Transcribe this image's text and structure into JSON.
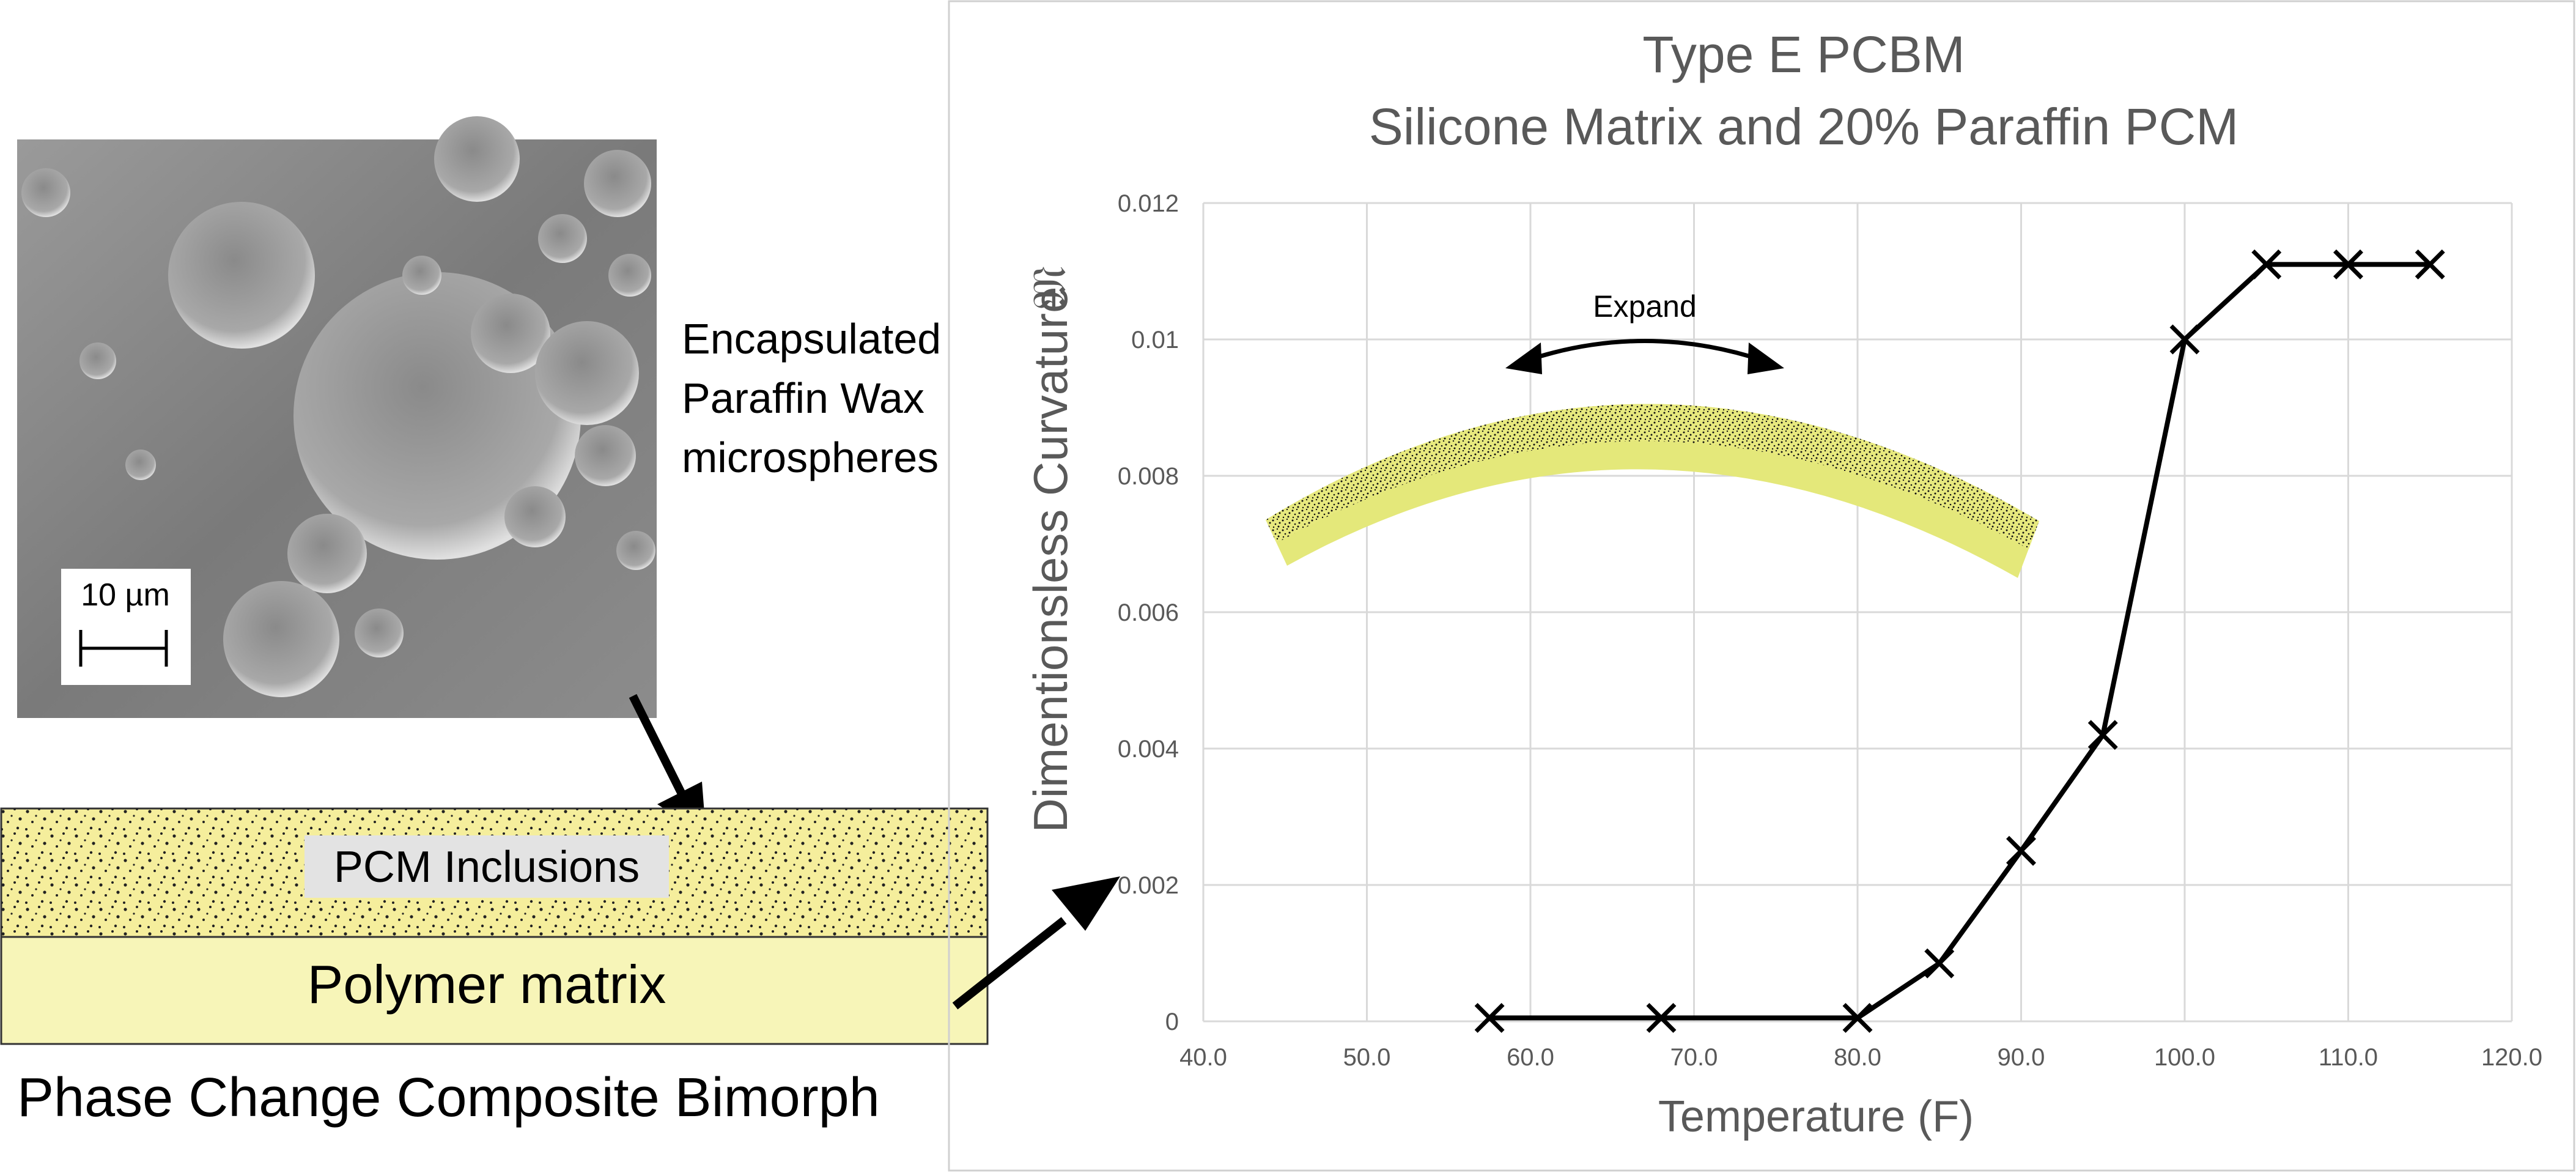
{
  "left_panel": {
    "scale_bar_label": "10 µm",
    "encapsulated_label_lines": [
      "Encapsulated",
      "Paraffin Wax",
      "microspheres"
    ],
    "pcm_label": "PCM Inclusions",
    "polymer_label": "Polymer matrix",
    "caption": "Phase Change Composite Bimorph",
    "colors": {
      "layer_fill": "#f7f2b0",
      "layer_pcm_fill": "#f5ee9c",
      "strip_fill": "#e4e87a"
    }
  },
  "chart_data": {
    "type": "line",
    "title_lines": [
      "Type E PCBM",
      "Silicone Matrix  and 20% Paraffin PCM"
    ],
    "xlabel": "Temperature (F)",
    "ylabel": "Dimentionsless Curvature",
    "ylabel_symbol": "𝔐",
    "xlim": [
      40.0,
      120.0
    ],
    "ylim": [
      0,
      0.012
    ],
    "x_ticks": [
      "40.0",
      "50.0",
      "60.0",
      "70.0",
      "80.0",
      "90.0",
      "100.0",
      "110.0",
      "120.0"
    ],
    "y_ticks": [
      "0",
      "0.002",
      "0.004",
      "0.006",
      "0.008",
      "0.01",
      "0.012"
    ],
    "grid": true,
    "marker": "x",
    "series": [
      {
        "x": [
          57.5,
          68.0,
          80.0,
          85.0,
          90.0,
          95.0,
          100.0,
          105.0,
          110.0,
          115.0
        ],
        "y": [
          5e-05,
          5e-05,
          5e-05,
          0.00085,
          0.0025,
          0.0042,
          0.01,
          0.0111,
          0.0111,
          0.0111
        ]
      }
    ],
    "annotation": "Expand",
    "colors": {
      "line": "#000000",
      "grid": "#d9d9d9",
      "text": "#595959"
    }
  }
}
